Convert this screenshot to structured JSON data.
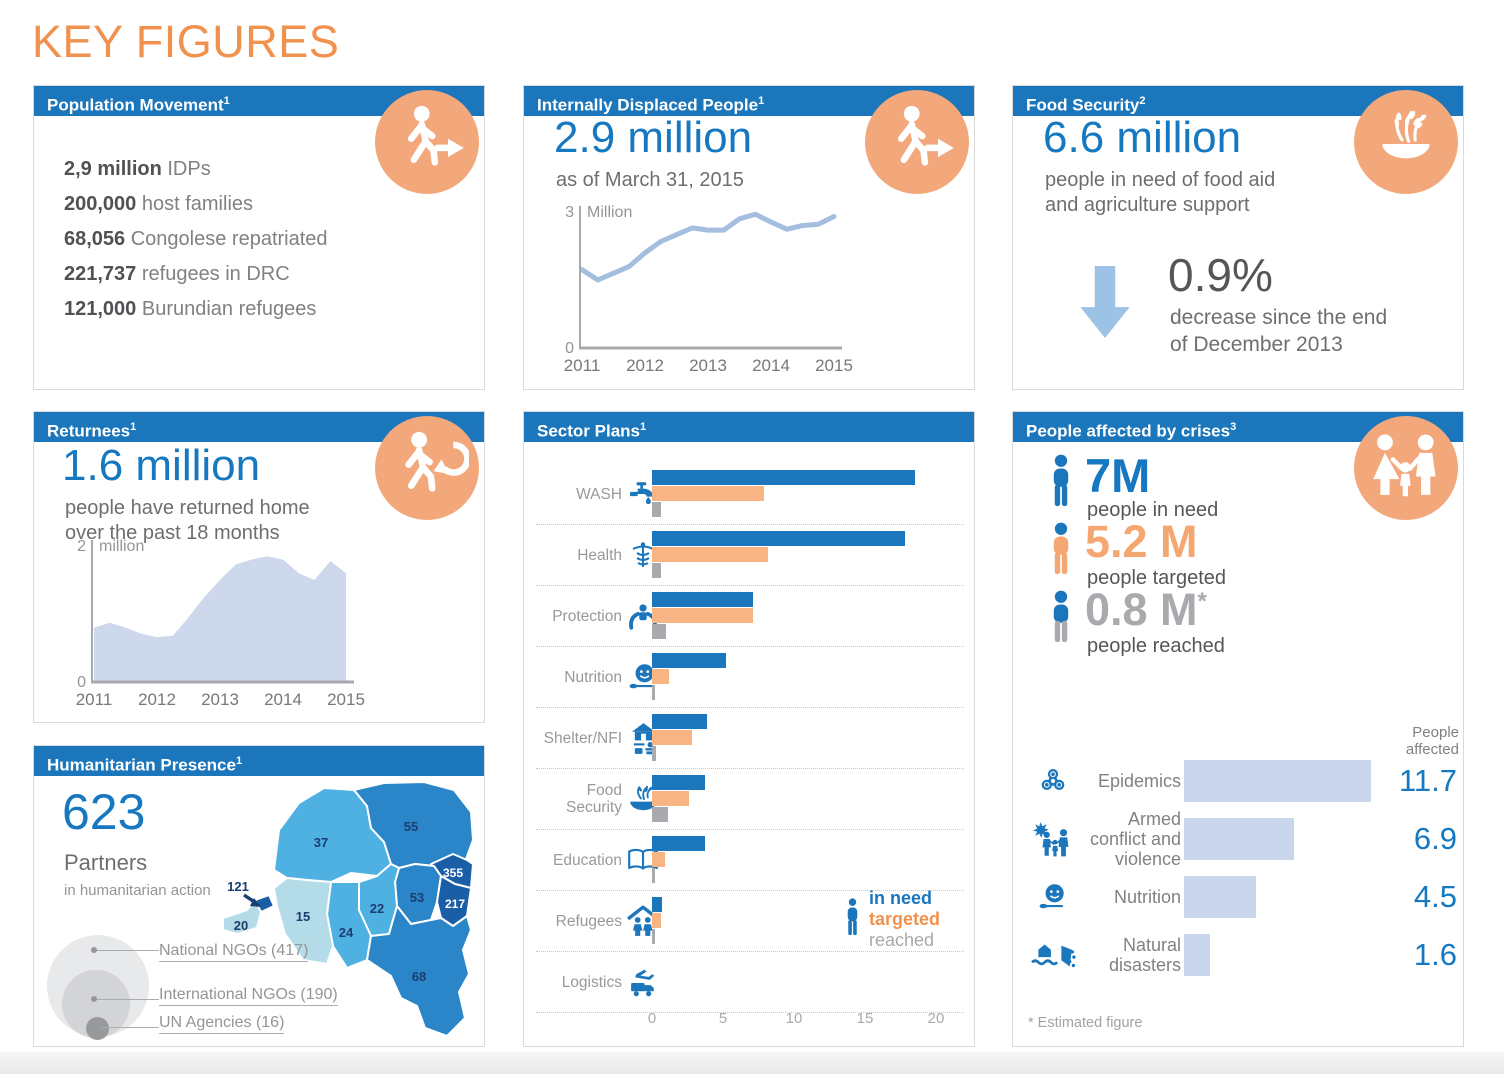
{
  "colors": {
    "primary_blue": "#1b76bc",
    "headline_blue": "#1678c0",
    "accent_orange": "#f0914d",
    "badge_salmon": "#f3a87c",
    "bar_orange": "#f9b483",
    "bar_gray": "#a8aaad",
    "light_blue_bar": "#c9d6ec",
    "line_blue": "#a3bede",
    "area_blue": "#cdd8ed",
    "down_arrow_blue": "#9cc3e6",
    "map_pale": "#b4dbe8",
    "map_light": "#4fb0e2",
    "map_mid": "#2a86c8",
    "map_dark": "#1b5ea8"
  },
  "page": {
    "title": "KEY FIGURES"
  },
  "panels": {
    "population_movement": {
      "title": "Population Movement",
      "sup": "1",
      "icon": "walking-person-icon",
      "stats": [
        {
          "value": "2,9 million",
          "label": "IDPs"
        },
        {
          "value": "200,000",
          "label": "host families"
        },
        {
          "value": "68,056",
          "label": "Congolese repatriated"
        },
        {
          "value": "221,737",
          "label": "refugees in DRC"
        },
        {
          "value": "121,000",
          "label": "Burundian refugees"
        }
      ]
    },
    "idp": {
      "title": "Internally Displaced People",
      "sup": "1",
      "icon": "walking-person-icon",
      "headline": "2.9 million",
      "subhead": "as of March 31, 2015"
    },
    "food_security": {
      "title": "Food Security",
      "sup": "2",
      "icon": "wheat-bowl-icon",
      "headline": "6.6 million",
      "subhead_line1": "people in need of food aid",
      "subhead_line2": "and agriculture support",
      "change_value": "0.9%",
      "change_line1": "decrease since the end",
      "change_line2": "of December 2013"
    },
    "returnees": {
      "title": "Returnees",
      "sup": "1",
      "icon": "returning-person-icon",
      "headline": "1.6 million",
      "subhead_line1": "people have returned home",
      "subhead_line2": "over the past 18 months"
    },
    "sector_plans": {
      "title": "Sector Plans",
      "sup": "1"
    },
    "humanitarian_presence": {
      "title": "Humanitarian Presence",
      "sup": "1",
      "headline": "623",
      "subhead": "Partners",
      "subsub": "in humanitarian action",
      "circles": [
        {
          "label": "National NGOs (417)"
        },
        {
          "label": "International NGOs (190)"
        },
        {
          "label": "UN Agencies (16)"
        }
      ]
    },
    "people_affected": {
      "title": "People affected by crises",
      "sup": "3",
      "icon": "family-icon",
      "rows": [
        {
          "value": "7M",
          "label": "people in need"
        },
        {
          "value": "5.2 M",
          "label": "people targeted"
        },
        {
          "value": "0.8 M",
          "value_sup": "*",
          "label": "people reached"
        }
      ],
      "footnote": "* Estimated figure"
    }
  },
  "chart_data": [
    {
      "id": "idp_trend",
      "type": "line",
      "title": "Internally Displaced People, as of March 31, 2015",
      "unit": "million people",
      "x": [
        2011,
        2011.25,
        2011.5,
        2011.75,
        2012,
        2012.25,
        2012.5,
        2012.75,
        2013,
        2013.25,
        2013.5,
        2013.75,
        2014,
        2014.25,
        2014.5,
        2014.75,
        2015
      ],
      "values": [
        1.73,
        1.5,
        1.65,
        1.8,
        2.1,
        2.35,
        2.5,
        2.65,
        2.6,
        2.6,
        2.85,
        2.95,
        2.78,
        2.62,
        2.7,
        2.73,
        2.9
      ],
      "xticks": [
        "2011",
        "2012",
        "2013",
        "2014",
        "2015"
      ],
      "ylim": [
        0,
        3
      ],
      "y_top_value": "3",
      "y_top_unit": "Million",
      "y_bottom": "0"
    },
    {
      "id": "returnees_trend",
      "type": "area",
      "title": "Returnees over time",
      "unit": "million people",
      "x": [
        2011,
        2011.25,
        2011.5,
        2011.75,
        2012,
        2012.25,
        2012.5,
        2012.75,
        2013,
        2013.25,
        2013.5,
        2013.75,
        2014,
        2014.25,
        2014.5,
        2014.75,
        2015
      ],
      "values": [
        0.8,
        0.87,
        0.8,
        0.71,
        0.66,
        0.68,
        0.95,
        1.25,
        1.5,
        1.73,
        1.8,
        1.85,
        1.8,
        1.6,
        1.5,
        1.78,
        1.6
      ],
      "xticks": [
        "2011",
        "2012",
        "2013",
        "2014",
        "2015"
      ],
      "ylim": [
        0,
        2
      ],
      "y_top_value": "2",
      "y_top_unit": "million",
      "y_bottom": "0"
    },
    {
      "id": "sector_plans",
      "type": "bar",
      "orientation": "horizontal",
      "title": "Sector Plans",
      "unit": "million people",
      "xlim": [
        0,
        20
      ],
      "categories": [
        "WASH",
        "Health",
        "Protection",
        "Nutrition",
        "Shelter/NFI",
        "Food Security",
        "Education",
        "Refugees",
        "Logistics"
      ],
      "icons": [
        "faucet-icon",
        "caduceus-icon",
        "protection-hands-icon",
        "nutrition-face-icon",
        "shelter-house-icon",
        "food-bowl-icon",
        "book-icon",
        "refugee-family-icon",
        "logistics-truck-icon"
      ],
      "series": [
        {
          "name": "in need",
          "values": [
            18.5,
            17.8,
            7.1,
            5.2,
            3.9,
            3.7,
            3.7,
            0.7,
            0
          ]
        },
        {
          "name": "targeted",
          "values": [
            7.9,
            8.2,
            7.1,
            1.2,
            2.8,
            2.6,
            0.9,
            0.6,
            0
          ]
        },
        {
          "name": "reached",
          "values": [
            0.6,
            0.6,
            1.0,
            0.2,
            0.3,
            1.1,
            0.2,
            0.2,
            0
          ]
        }
      ],
      "xticks": [
        "0",
        "5",
        "10",
        "15",
        "20"
      ],
      "legend": {
        "in_need": "in need",
        "targeted": "targeted",
        "reached": "reached"
      }
    },
    {
      "id": "people_affected_bars",
      "type": "bar",
      "orientation": "horizontal",
      "column_header_line1": "People",
      "column_header_line2": "affected",
      "unit": "million people",
      "xlim": [
        0,
        12
      ],
      "categories": [
        "Epidemics",
        "Armed conflict and violence",
        "Nutrition",
        "Natural disasters"
      ],
      "icons": [
        "biohazard-icon",
        "armed-conflict-family-icon",
        "nutrition-face-icon",
        "natural-disaster-icon"
      ],
      "values": [
        11.7,
        6.9,
        4.5,
        1.6
      ]
    },
    {
      "id": "humanitarian_presence_map",
      "type": "map",
      "title": "Partners in humanitarian action by province",
      "provinces": [
        {
          "id": "equateur",
          "value": "37"
        },
        {
          "id": "orientale",
          "value": "55"
        },
        {
          "id": "nord-kivu",
          "value": "355"
        },
        {
          "id": "maniema",
          "value": "53"
        },
        {
          "id": "sud-kivu",
          "value": "217"
        },
        {
          "id": "kasai-oriental",
          "value": "22"
        },
        {
          "id": "kasai-occidental",
          "value": "24"
        },
        {
          "id": "bandundu",
          "value": "15"
        },
        {
          "id": "bas-congo",
          "value": "20"
        },
        {
          "id": "kinshasa",
          "value": "121"
        },
        {
          "id": "katanga",
          "value": "68"
        }
      ]
    }
  ]
}
